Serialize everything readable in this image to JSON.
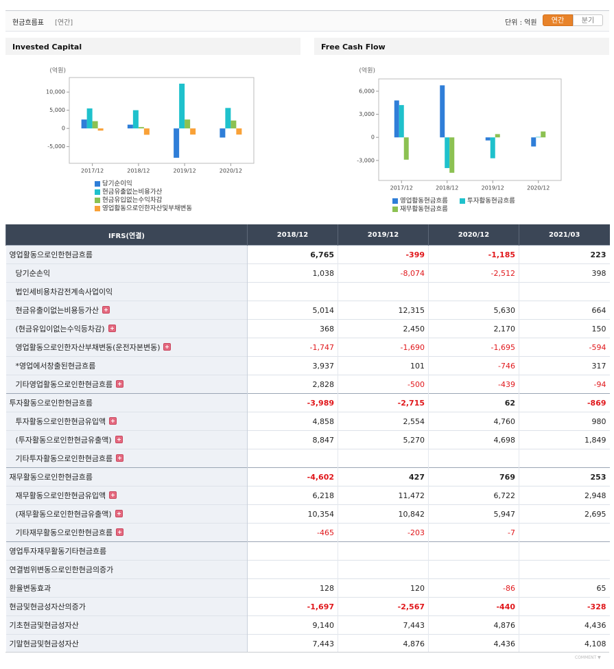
{
  "header": {
    "title": "현금흐름표",
    "period": "[연간]",
    "unit": "단위 : 억원",
    "buttons": [
      "연간",
      "분기"
    ]
  },
  "chart_data": [
    {
      "type": "bar",
      "title": "Invested Capital",
      "y_label": "(억원)",
      "categories": [
        "2017/12",
        "2018/12",
        "2019/12",
        "2020/12"
      ],
      "series": [
        {
          "name": "당기순이익",
          "color": "#2f7ed8",
          "values": [
            2450,
            1038,
            -8074,
            -2512
          ]
        },
        {
          "name": "현금유출없는비용가산",
          "color": "#1fc1cc",
          "values": [
            5500,
            5014,
            12315,
            5630
          ]
        },
        {
          "name": "현금유입없는수익차감",
          "color": "#8cc152",
          "values": [
            2000,
            368,
            2450,
            2170
          ]
        },
        {
          "name": "영업활동으로인한자산및부채변동",
          "color": "#f9a137",
          "values": [
            -600,
            -1747,
            -1690,
            -1695
          ]
        }
      ],
      "ylim": [
        -9600,
        14000
      ],
      "yticks": [
        {
          "value": -5000,
          "label": "-5,000"
        },
        0,
        {
          "value": 5000,
          "label": "5,000"
        },
        {
          "value": 10000,
          "label": "10,000"
        }
      ],
      "grid": false
    },
    {
      "type": "bar",
      "title": "Free Cash Flow",
      "y_label": "(억원)",
      "categories": [
        "2017/12",
        "2018/12",
        "2019/12",
        "2020/12"
      ],
      "series": [
        {
          "name": "영업활동현금흐름",
          "color": "#2f7ed8",
          "values": [
            4800,
            6765,
            -399,
            -1185
          ]
        },
        {
          "name": "투자활동현금흐름",
          "color": "#1fc1cc",
          "values": [
            4200,
            -3989,
            -2715,
            62
          ]
        },
        {
          "name": "재무활동현금흐름",
          "color": "#8cc152",
          "values": [
            -2900,
            -4602,
            427,
            769
          ]
        }
      ],
      "ylim": [
        -5600,
        7600
      ],
      "yticks": [
        {
          "value": -3000,
          "label": "-3,000"
        },
        0,
        {
          "value": 3000,
          "label": "3,000"
        },
        {
          "value": 6000,
          "label": "6,000"
        }
      ],
      "grid": false
    }
  ],
  "table": {
    "columns": [
      "IFRS(연결)",
      "2018/12",
      "2019/12",
      "2020/12",
      "2021/03"
    ],
    "rows": [
      {
        "label": "영업활동으로인한현금흐름",
        "values": [
          "6,765",
          "-399",
          "-1,185",
          "223"
        ],
        "bold": true,
        "group": true
      },
      {
        "label": "당기순손익",
        "values": [
          "1,038",
          "-8,074",
          "-2,512",
          "398"
        ],
        "sub": true
      },
      {
        "label": "법인세비용차감전계속사업이익",
        "values": [
          null,
          null,
          null,
          null
        ],
        "sub": true
      },
      {
        "label": "현금유출이없는비용등가산",
        "values": [
          "5,014",
          "12,315",
          "5,630",
          "664"
        ],
        "sub": true,
        "expand": true
      },
      {
        "label": "(현금유입이없는수익등차감)",
        "values": [
          "368",
          "2,450",
          "2,170",
          "150"
        ],
        "sub": true,
        "expand": true
      },
      {
        "label": "영업활동으로인한자산부채변동(운전자본변동)",
        "values": [
          "-1,747",
          "-1,690",
          "-1,695",
          "-594"
        ],
        "sub": true,
        "expand": true
      },
      {
        "label": "*영업에서창출된현금흐름",
        "values": [
          "3,937",
          "101",
          "-746",
          "317"
        ],
        "sub": true
      },
      {
        "label": "기타영업활동으로인한현금흐름",
        "values": [
          "2,828",
          "-500",
          "-439",
          "-94"
        ],
        "sub": true,
        "expand": true
      },
      {
        "label": "투자활동으로인한현금흐름",
        "values": [
          "-3,989",
          "-2,715",
          "62",
          "-869"
        ],
        "bold": true,
        "group": true
      },
      {
        "label": "투자활동으로인한현금유입액",
        "values": [
          "4,858",
          "2,554",
          "4,760",
          "980"
        ],
        "sub": true,
        "expand": true
      },
      {
        "label": "(투자활동으로인한현금유출액)",
        "values": [
          "8,847",
          "5,270",
          "4,698",
          "1,849"
        ],
        "sub": true,
        "expand": true
      },
      {
        "label": "기타투자활동으로인한현금흐름",
        "values": [
          null,
          null,
          null,
          null
        ],
        "sub": true,
        "expand": true
      },
      {
        "label": "재무활동으로인한현금흐름",
        "values": [
          "-4,602",
          "427",
          "769",
          "253"
        ],
        "bold": true,
        "group": true
      },
      {
        "label": "재무활동으로인한현금유입액",
        "values": [
          "6,218",
          "11,472",
          "6,722",
          "2,948"
        ],
        "sub": true,
        "expand": true
      },
      {
        "label": "(재무활동으로인한현금유출액)",
        "values": [
          "10,354",
          "10,842",
          "5,947",
          "2,695"
        ],
        "sub": true,
        "expand": true
      },
      {
        "label": "기타재무활동으로인한현금흐름",
        "values": [
          "-465",
          "-203",
          "-7",
          null
        ],
        "sub": true,
        "expand": true
      },
      {
        "label": "영업투자재무활동기타현금흐름",
        "values": [
          null,
          null,
          null,
          null
        ],
        "group": true
      },
      {
        "label": "연결범위변동으로인한현금의증가",
        "values": [
          null,
          null,
          null,
          null
        ]
      },
      {
        "label": "환율변동효과",
        "values": [
          "128",
          "120",
          "-86",
          "65"
        ]
      },
      {
        "label": "현금및현금성자산의증가",
        "values": [
          "-1,697",
          "-2,567",
          "-440",
          "-328"
        ],
        "bold": true
      },
      {
        "label": "기초현금및현금성자산",
        "values": [
          "9,140",
          "7,443",
          "4,876",
          "4,436"
        ]
      },
      {
        "label": "기말현금및현금성자산",
        "values": [
          "7,443",
          "4,876",
          "4,436",
          "4,108"
        ]
      }
    ]
  },
  "comment": "COMMENT"
}
